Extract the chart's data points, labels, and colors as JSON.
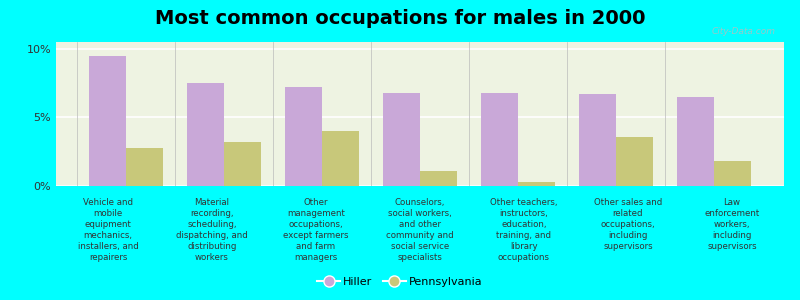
{
  "title": "Most common occupations for males in 2000",
  "background_color": "#00FFFF",
  "plot_bg_color": "#eef3e2",
  "bar_color_hiller": "#c9a8d8",
  "bar_color_pennsylvania": "#c8c87a",
  "categories": [
    "Vehicle and\nmobile\nequipment\nmechanics,\ninstallers, and\nrepairers",
    "Material\nrecording,\nscheduling,\ndispatching, and\ndistributing\nworkers",
    "Other\nmanagement\noccupations,\nexcept farmers\nand farm\nmanagers",
    "Counselors,\nsocial workers,\nand other\ncommunity and\nsocial service\nspecialists",
    "Other teachers,\ninstructors,\neducation,\ntraining, and\nlibrary\noccupations",
    "Other sales and\nrelated\noccupations,\nincluding\nsupervisors",
    "Law\nenforcement\nworkers,\nincluding\nsupervisors"
  ],
  "hiller_values": [
    9.5,
    7.5,
    7.2,
    6.8,
    6.8,
    6.7,
    6.5
  ],
  "pennsylvania_values": [
    2.8,
    3.2,
    4.0,
    1.1,
    0.3,
    3.6,
    1.8
  ],
  "ylim": [
    0,
    10.5
  ],
  "yticks": [
    0,
    5,
    10
  ],
  "ytick_labels": [
    "0%",
    "5%",
    "10%"
  ],
  "legend_hiller": "Hiller",
  "legend_pennsylvania": "Pennsylvania",
  "watermark": "City-Data.com",
  "title_fontsize": 14,
  "label_fontsize": 6.2,
  "ytick_fontsize": 8
}
